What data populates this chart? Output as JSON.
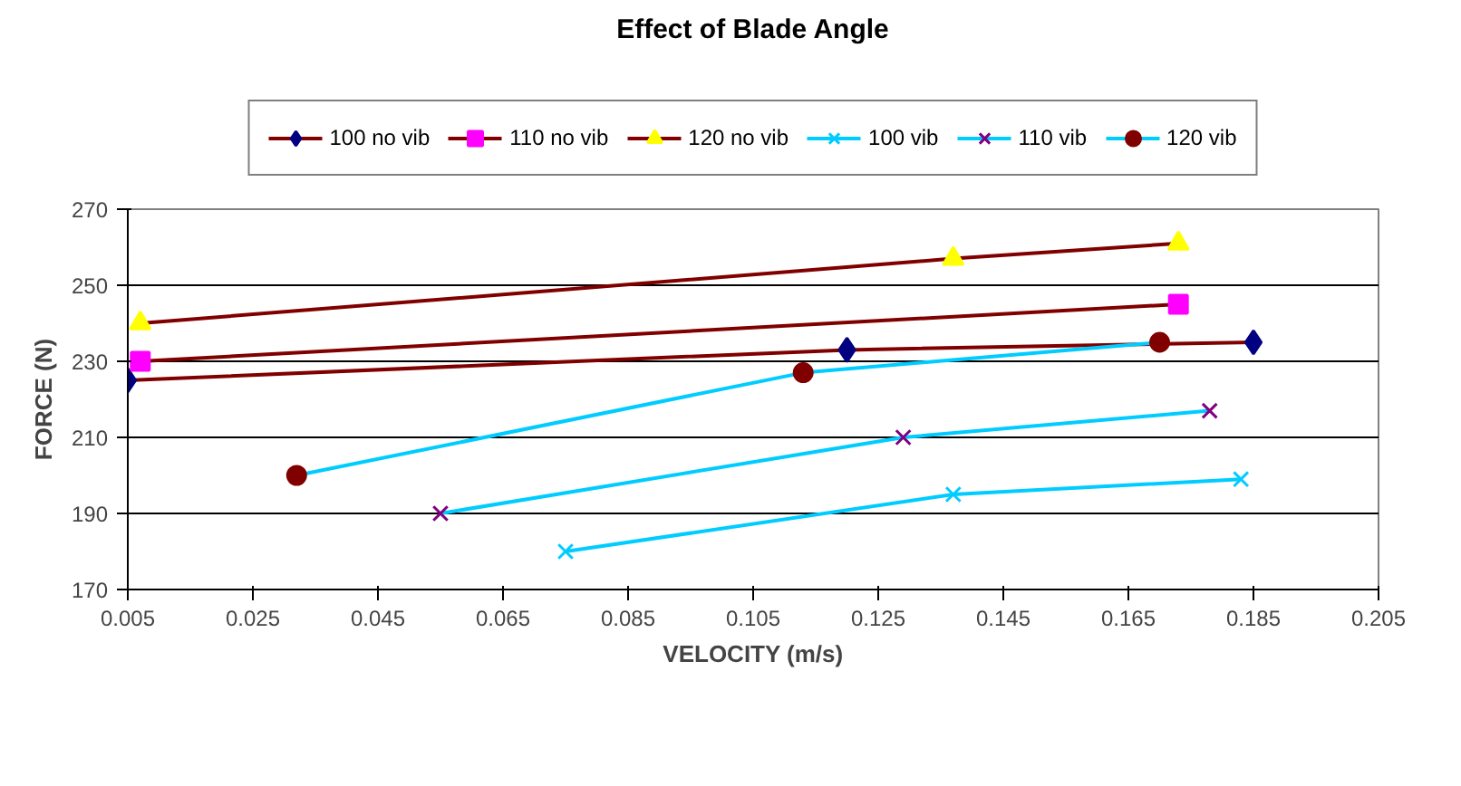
{
  "chart_data": {
    "type": "line",
    "title": "Effect of Blade Angle",
    "xlabel": "VELOCITY (m/s)",
    "ylabel": "FORCE (N)",
    "xlim": [
      0.005,
      0.205
    ],
    "xticks": [
      {
        "value": 0.005,
        "label": "0.005"
      },
      {
        "value": 0.025,
        "label": "0.025"
      },
      {
        "value": 0.045,
        "label": "0.045"
      },
      {
        "value": 0.065,
        "label": "0.065"
      },
      {
        "value": 0.085,
        "label": "0.085"
      },
      {
        "value": 0.105,
        "label": "0.105"
      },
      {
        "value": 0.125,
        "label": "0.125"
      },
      {
        "value": 0.145,
        "label": "0.145"
      },
      {
        "value": 0.165,
        "label": "0.165"
      },
      {
        "value": 0.185,
        "label": "0.185"
      },
      {
        "value": 0.205,
        "label": "0.205"
      }
    ],
    "ylim": [
      170,
      270
    ],
    "yticks": [
      170,
      190,
      210,
      230,
      250,
      270
    ],
    "grid": "y",
    "legend": "top",
    "series": [
      {
        "name": "100 no vib",
        "color": "#800000",
        "colors": [
          "#000080",
          "#000080",
          "#000080"
        ],
        "marker": "diamond",
        "x": [
          0.005,
          0.12,
          0.185
        ],
        "values": [
          225,
          233,
          235
        ]
      },
      {
        "name": "110 no vib",
        "color": "#800000",
        "colors": [
          "#ff00ff",
          "#ff00ff"
        ],
        "marker": "square",
        "x": [
          0.007,
          0.173
        ],
        "values": [
          230,
          245
        ]
      },
      {
        "name": "120 no vib",
        "color": "#800000",
        "colors": [
          "#ffff00",
          "#ffff00",
          "#ffff00"
        ],
        "marker": "triangle",
        "x": [
          0.007,
          0.137,
          0.173
        ],
        "values": [
          240,
          257,
          261
        ]
      },
      {
        "name": "100 vib",
        "color": "#00ccff",
        "colors": [
          "#00ccff",
          "#00ccff",
          "#00ccff"
        ],
        "marker": "cross",
        "x": [
          0.075,
          0.137,
          0.183
        ],
        "values": [
          180,
          195,
          199
        ]
      },
      {
        "name": "110 vib",
        "color": "#00ccff",
        "colors": [
          "#800080",
          "#800080",
          "#800080"
        ],
        "marker": "cross",
        "x": [
          0.055,
          0.129,
          0.178
        ],
        "values": [
          190,
          210,
          217
        ]
      },
      {
        "name": "120 vib",
        "color": "#00ccff",
        "colors": [
          "#800000",
          "#800000",
          "#800000"
        ],
        "marker": "circle",
        "x": [
          0.032,
          0.113,
          0.17
        ],
        "values": [
          200,
          227,
          235
        ]
      }
    ]
  }
}
